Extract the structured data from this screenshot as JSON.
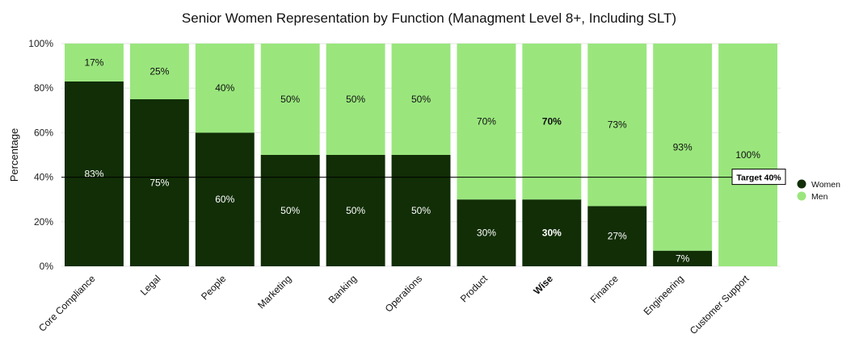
{
  "chart_data": {
    "type": "bar",
    "stacked": true,
    "title": "Senior Women Representation by Function (Managment Level 8+, Including SLT)",
    "ylabel": "Percentage",
    "xlabel": "",
    "ylim": [
      0,
      100
    ],
    "yticks": [
      0,
      20,
      40,
      60,
      80,
      100
    ],
    "ytick_labels": [
      "0%",
      "20%",
      "40%",
      "60%",
      "80%",
      "100%"
    ],
    "grid": true,
    "legend_position": "right",
    "categories": [
      "Core Compliance",
      "Legal",
      "People",
      "Marketing",
      "Banking",
      "Operations",
      "Product",
      "Wise",
      "Finance",
      "Engineering",
      "Customer Support"
    ],
    "highlight_category": "Wise",
    "series": [
      {
        "name": "Women",
        "color": "#112e06",
        "values": [
          83,
          75,
          60,
          50,
          50,
          50,
          30,
          30,
          27,
          7,
          0
        ],
        "labels": [
          "83%",
          "75%",
          "60%",
          "50%",
          "50%",
          "50%",
          "30%",
          "30%",
          "27%",
          "7%",
          ""
        ]
      },
      {
        "name": "Men",
        "color": "#9ae67d",
        "values": [
          17,
          25,
          40,
          50,
          50,
          50,
          70,
          70,
          73,
          93,
          100
        ],
        "labels": [
          "17%",
          "25%",
          "40%",
          "50%",
          "50%",
          "50%",
          "70%",
          "70%",
          "73%",
          "93%",
          "100%"
        ]
      }
    ],
    "target": {
      "value": 40,
      "label": "Target 40%"
    }
  }
}
